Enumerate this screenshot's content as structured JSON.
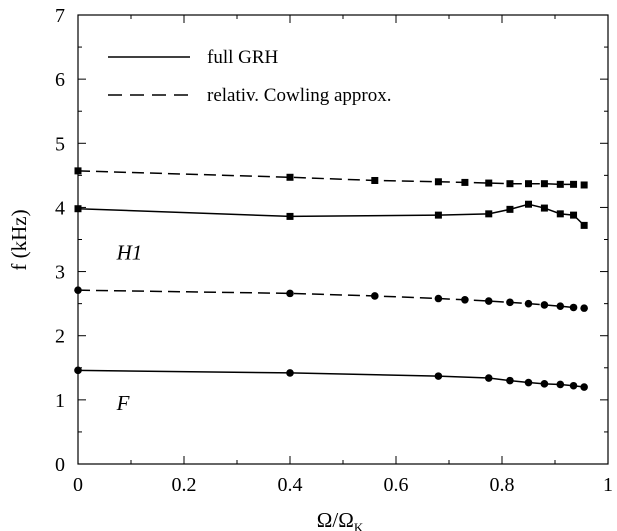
{
  "chart_data": {
    "type": "line",
    "xlabel": "Ω/Ω",
    "xlabel_sub": "K",
    "ylabel": "f (kHz)",
    "xlim": [
      0,
      1
    ],
    "ylim": [
      0,
      7
    ],
    "xticks": [
      0,
      0.2,
      0.4,
      0.6,
      0.8,
      1
    ],
    "xtick_labels": [
      "0",
      "0.2",
      "0.4",
      "0.6",
      "0.8",
      "1"
    ],
    "yticks": [
      0,
      1,
      2,
      3,
      4,
      5,
      6,
      7
    ],
    "ytick_labels": [
      "0",
      "1",
      "2",
      "3",
      "4",
      "5",
      "6",
      "7"
    ],
    "grid": false,
    "legend": {
      "placement": "top-left",
      "entries": [
        {
          "label": "full GRH",
          "style": "solid"
        },
        {
          "label": "relativ. Cowling approx.",
          "style": "dashed"
        }
      ]
    },
    "annotations": [
      {
        "text": "H1",
        "x": 0.02,
        "y": 3.3
      },
      {
        "text": "F",
        "x": 0.02,
        "y": 0.95
      }
    ],
    "series": [
      {
        "mode": "H1",
        "style": "dashed",
        "marker": "square",
        "x": [
          0,
          0.4,
          0.56,
          0.68,
          0.73,
          0.775,
          0.815,
          0.85,
          0.88,
          0.91,
          0.935,
          0.955
        ],
        "y": [
          4.57,
          4.47,
          4.42,
          4.4,
          4.39,
          4.38,
          4.37,
          4.37,
          4.37,
          4.36,
          4.36,
          4.35
        ]
      },
      {
        "mode": "H1",
        "style": "solid",
        "marker": "square",
        "x": [
          0,
          0.4,
          0.68,
          0.775,
          0.815,
          0.85,
          0.88,
          0.91,
          0.935,
          0.955
        ],
        "y": [
          3.98,
          3.86,
          3.88,
          3.9,
          3.97,
          4.05,
          3.99,
          3.9,
          3.88,
          3.72
        ]
      },
      {
        "mode": "F",
        "style": "dashed",
        "marker": "circle",
        "x": [
          0,
          0.4,
          0.56,
          0.68,
          0.73,
          0.775,
          0.815,
          0.85,
          0.88,
          0.91,
          0.935,
          0.955
        ],
        "y": [
          2.71,
          2.66,
          2.62,
          2.58,
          2.56,
          2.54,
          2.52,
          2.5,
          2.48,
          2.46,
          2.44,
          2.43
        ]
      },
      {
        "mode": "F",
        "style": "solid",
        "marker": "circle",
        "x": [
          0,
          0.4,
          0.68,
          0.775,
          0.815,
          0.85,
          0.88,
          0.91,
          0.935,
          0.955
        ],
        "y": [
          1.46,
          1.42,
          1.37,
          1.34,
          1.3,
          1.27,
          1.25,
          1.24,
          1.22,
          1.2
        ]
      }
    ]
  }
}
